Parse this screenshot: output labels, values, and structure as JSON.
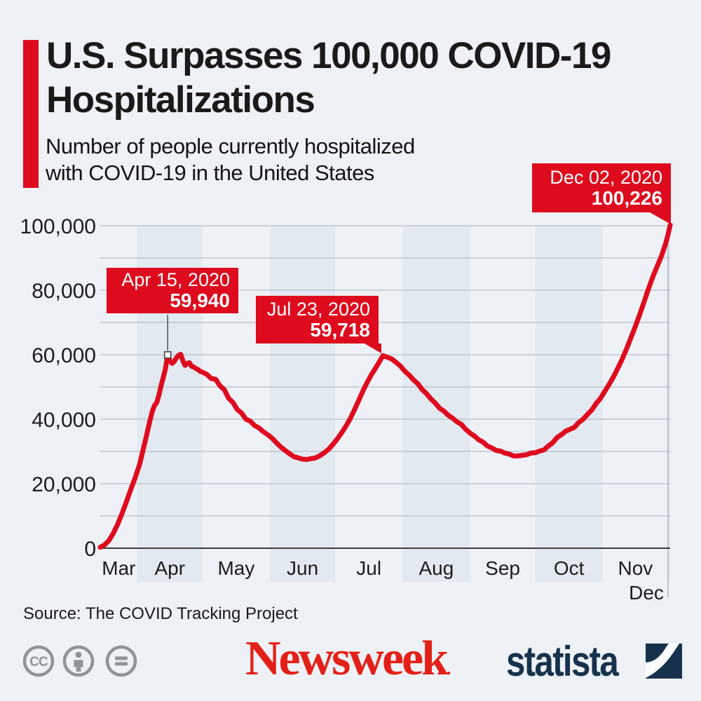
{
  "colors": {
    "accent_red": "#de0b1e",
    "background": "#eef1f6",
    "band": "#e3e9f1",
    "gridline": "#b9bec6",
    "axis": "#3f3f3f",
    "line_red": "#de0b1e",
    "newsweek_red": "#e32017",
    "statista_navy": "#17324d",
    "cc_gray": "#8f9499"
  },
  "header": {
    "title_line1": "U.S. Surpasses 100,000 COVID-19",
    "title_line2": "Hospitalizations",
    "subtitle_line1": "Number of people currently hospitalized",
    "subtitle_line2": "with COVID-19 in the United States"
  },
  "chart_data": {
    "type": "line",
    "title": "Number of people currently hospitalized with COVID-19 in the United States",
    "series_name": "Currently hospitalized",
    "x_start_date": "2020-03-15",
    "x_end_date": "2020-12-02",
    "x_month_labels": [
      "Mar",
      "Apr",
      "May",
      "Jun",
      "Jul",
      "Aug",
      "Sep",
      "Oct",
      "Nov",
      "Dec"
    ],
    "shaded_months": [
      "Apr",
      "Jun",
      "Aug",
      "Oct",
      "Dec"
    ],
    "y_ticks": [
      {
        "label": "100,000",
        "value": 100000
      },
      {
        "label": "80,000",
        "value": 80000
      },
      {
        "label": "60,000",
        "value": 60000
      },
      {
        "label": "40,000",
        "value": 40000
      },
      {
        "label": "20,000",
        "value": 20000
      },
      {
        "label": "0",
        "value": 0
      }
    ],
    "y_minor_step": 10000,
    "ylim": [
      0,
      100000
    ],
    "grid": true,
    "legend": "none",
    "line_color": "#de0b1e",
    "points": [
      [
        0,
        300
      ],
      [
        2,
        1000
      ],
      [
        4,
        2400
      ],
      [
        6,
        4600
      ],
      [
        8,
        7400
      ],
      [
        10,
        10700
      ],
      [
        12,
        14300
      ],
      [
        14,
        18100
      ],
      [
        16,
        21700
      ],
      [
        18,
        25800
      ],
      [
        19,
        28500
      ],
      [
        20,
        31400
      ],
      [
        21,
        34200
      ],
      [
        22,
        37100
      ],
      [
        23,
        40000
      ],
      [
        24,
        42600
      ],
      [
        25,
        44300
      ],
      [
        26,
        45200
      ],
      [
        27,
        47600
      ],
      [
        28,
        50500
      ],
      [
        29,
        53000
      ],
      [
        30,
        55700
      ],
      [
        31,
        59940
      ],
      [
        32,
        58200
      ],
      [
        33,
        57300
      ],
      [
        34,
        57900
      ],
      [
        35,
        59000
      ],
      [
        36,
        59800
      ],
      [
        37,
        60100
      ],
      [
        38,
        58100
      ],
      [
        39,
        56700
      ],
      [
        40,
        57300
      ],
      [
        41,
        57500
      ],
      [
        42,
        56400
      ],
      [
        43,
        56200
      ],
      [
        44,
        55700
      ],
      [
        45,
        55400
      ],
      [
        46,
        54800
      ],
      [
        47,
        54600
      ],
      [
        49,
        53900
      ],
      [
        51,
        52600
      ],
      [
        53,
        52400
      ],
      [
        55,
        50400
      ],
      [
        57,
        49200
      ],
      [
        59,
        46500
      ],
      [
        61,
        45200
      ],
      [
        63,
        43000
      ],
      [
        65,
        41900
      ],
      [
        67,
        40000
      ],
      [
        69,
        39400
      ],
      [
        71,
        38000
      ],
      [
        73,
        37300
      ],
      [
        75,
        36100
      ],
      [
        77,
        35200
      ],
      [
        79,
        34100
      ],
      [
        81,
        32700
      ],
      [
        83,
        31400
      ],
      [
        85,
        30300
      ],
      [
        87,
        29300
      ],
      [
        89,
        28400
      ],
      [
        91,
        28000
      ],
      [
        93,
        27600
      ],
      [
        95,
        27500
      ],
      [
        97,
        27800
      ],
      [
        99,
        28000
      ],
      [
        101,
        28700
      ],
      [
        103,
        29600
      ],
      [
        105,
        30700
      ],
      [
        107,
        32200
      ],
      [
        109,
        33900
      ],
      [
        111,
        35800
      ],
      [
        113,
        37900
      ],
      [
        115,
        40300
      ],
      [
        117,
        43100
      ],
      [
        119,
        46100
      ],
      [
        121,
        49100
      ],
      [
        123,
        51800
      ],
      [
        125,
        54200
      ],
      [
        127,
        56300
      ],
      [
        129,
        58600
      ],
      [
        130,
        59718
      ],
      [
        132,
        59200
      ],
      [
        134,
        58700
      ],
      [
        136,
        57600
      ],
      [
        138,
        56500
      ],
      [
        140,
        54900
      ],
      [
        142,
        53700
      ],
      [
        144,
        52200
      ],
      [
        146,
        51000
      ],
      [
        148,
        49200
      ],
      [
        150,
        47900
      ],
      [
        152,
        46300
      ],
      [
        154,
        45000
      ],
      [
        156,
        43400
      ],
      [
        158,
        42500
      ],
      [
        160,
        41200
      ],
      [
        162,
        40300
      ],
      [
        164,
        39200
      ],
      [
        166,
        38400
      ],
      [
        168,
        36900
      ],
      [
        170,
        35700
      ],
      [
        172,
        34800
      ],
      [
        174,
        33600
      ],
      [
        176,
        32900
      ],
      [
        178,
        31700
      ],
      [
        180,
        31100
      ],
      [
        182,
        30300
      ],
      [
        184,
        30100
      ],
      [
        186,
        29500
      ],
      [
        188,
        29200
      ],
      [
        190,
        28600
      ],
      [
        192,
        28600
      ],
      [
        194,
        28800
      ],
      [
        196,
        29000
      ],
      [
        198,
        29500
      ],
      [
        200,
        29600
      ],
      [
        202,
        30100
      ],
      [
        204,
        30500
      ],
      [
        206,
        31700
      ],
      [
        208,
        32700
      ],
      [
        210,
        34300
      ],
      [
        212,
        35200
      ],
      [
        214,
        36300
      ],
      [
        216,
        36900
      ],
      [
        218,
        37500
      ],
      [
        220,
        39000
      ],
      [
        222,
        40000
      ],
      [
        224,
        41500
      ],
      [
        226,
        42900
      ],
      [
        228,
        44900
      ],
      [
        230,
        46500
      ],
      [
        232,
        48700
      ],
      [
        234,
        50900
      ],
      [
        236,
        53200
      ],
      [
        238,
        55900
      ],
      [
        240,
        58700
      ],
      [
        242,
        61900
      ],
      [
        244,
        65300
      ],
      [
        246,
        68800
      ],
      [
        248,
        72500
      ],
      [
        250,
        76400
      ],
      [
        252,
        80400
      ],
      [
        254,
        84100
      ],
      [
        256,
        87400
      ],
      [
        258,
        90600
      ],
      [
        260,
        94600
      ],
      [
        261,
        97200
      ],
      [
        262,
        100226
      ]
    ],
    "annotations": [
      {
        "date_label": "Apr 15, 2020",
        "value_label": "59,940",
        "day": 31,
        "value": 59940,
        "style": "leader-line"
      },
      {
        "date_label": "Jul 23, 2020",
        "value_label": "59,718",
        "day": 130,
        "value": 59718,
        "style": "tail"
      },
      {
        "date_label": "Dec 02, 2020",
        "value_label": "100,226",
        "day": 262,
        "value": 100226,
        "style": "tail"
      }
    ]
  },
  "footer": {
    "source": "Source: The COVID Tracking Project",
    "cc_icons": [
      "creative-commons",
      "attribution",
      "equals"
    ],
    "newsweek_logo_text": "Newsweek",
    "newsweek_logo_mark": ".",
    "statista_logo_text": "statista"
  }
}
